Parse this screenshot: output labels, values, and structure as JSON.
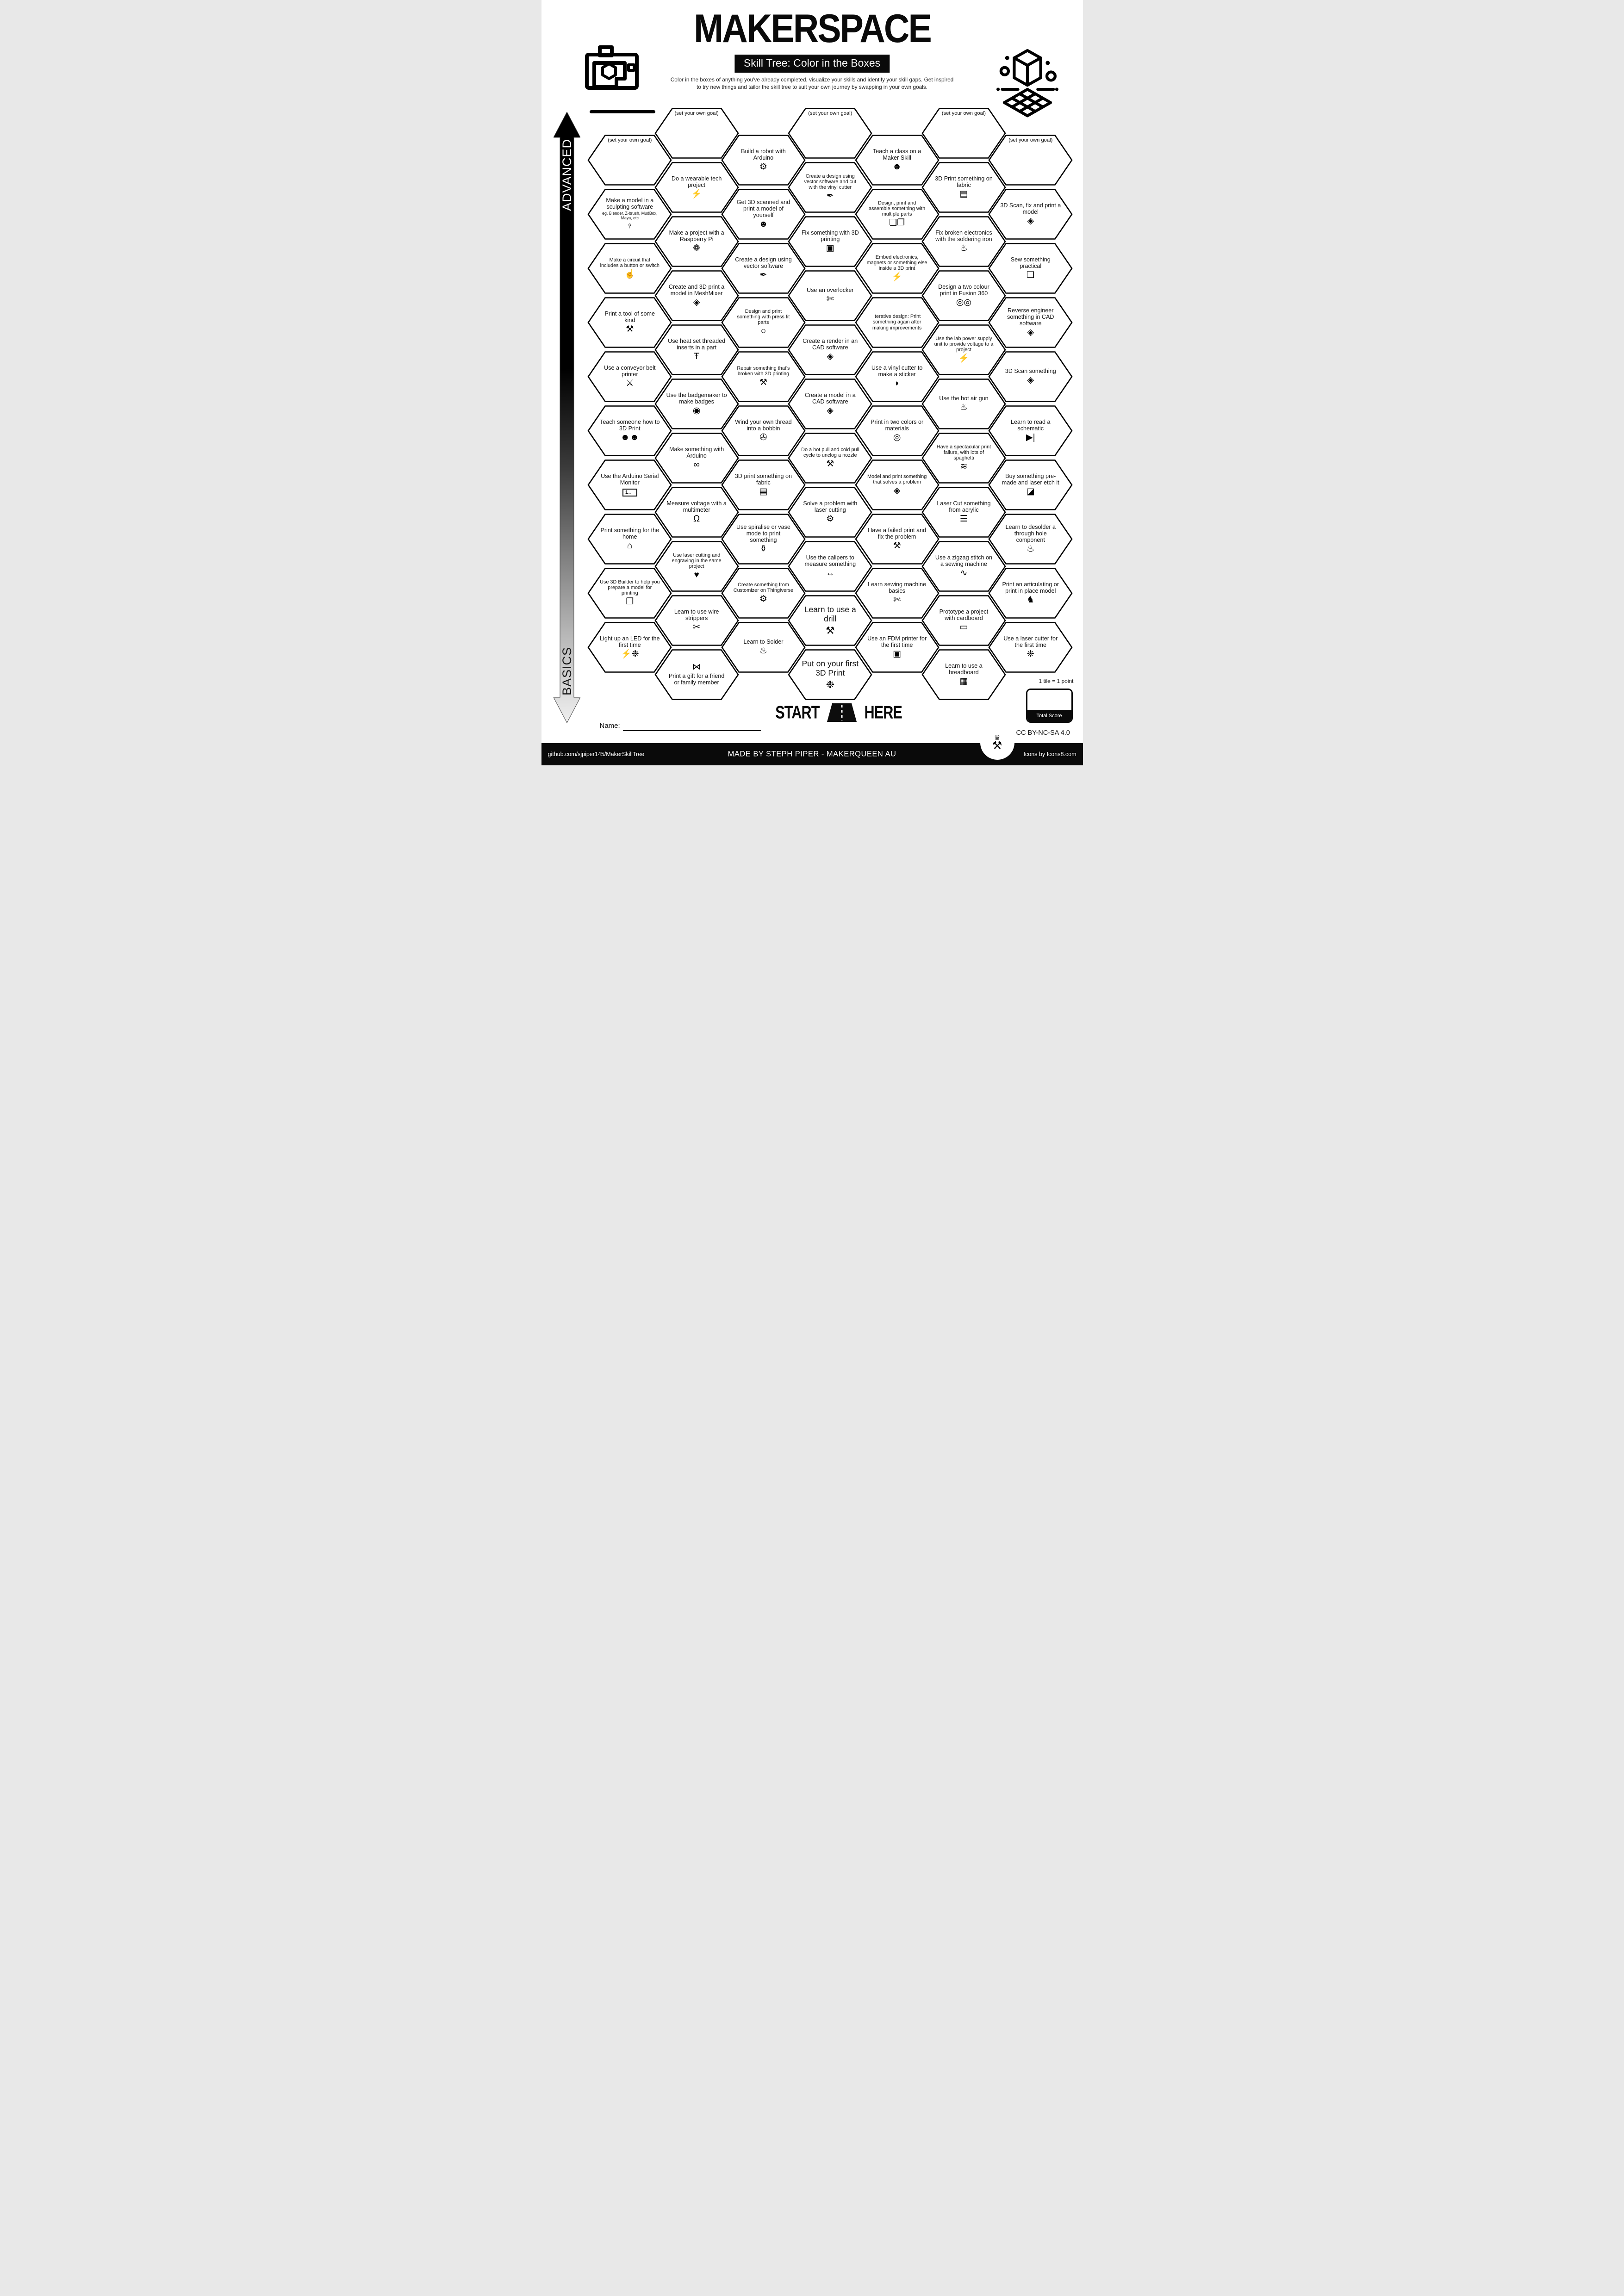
{
  "header": {
    "title": "MAKERSPACE",
    "subtitle": "Skill Tree: Color in the Boxes",
    "description_line1": "Color in the boxes of anything you've already completed, visualize your skills and identify your skill gaps.  Get inspired",
    "description_line2": "to try new things and tailor the skill tree to suit your own journey by swapping in your own goals."
  },
  "axis": {
    "top_label": "ADVANCED",
    "bottom_label": "BASICS"
  },
  "name_label": "Name:",
  "start_here": {
    "start": "START",
    "here": "HERE"
  },
  "score": {
    "tile_note": "1 tile = 1 point",
    "total_label": "Total Score"
  },
  "license": "CC BY-NC-SA 4.0",
  "footer": {
    "left": "github.com/sjpiper145/MakerSkillTree",
    "center": "MADE BY STEPH PIPER  -  MAKERQUEEN AU",
    "right": "Icons by Icons8.com"
  },
  "hexagons": [
    {
      "col": 1,
      "row": 0,
      "label": "(set your own goal)",
      "goal": true,
      "icon": null,
      "glyph": ""
    },
    {
      "col": 1,
      "row": 1,
      "label": "Make a model in a sculpting software",
      "sublabel": "eg. Blender, Z-brush, MudBox, Maya, etc",
      "icon": "statue-icon",
      "glyph": "♀"
    },
    {
      "col": 1,
      "row": 2,
      "label": "Make a circuit that includes a button or switch",
      "icon": "finger-press-icon",
      "glyph": "☝"
    },
    {
      "col": 1,
      "row": 3,
      "label": "Print a tool of some kind",
      "icon": "tools-icon",
      "glyph": "⚒"
    },
    {
      "col": 1,
      "row": 4,
      "label": "Use a conveyor belt printer",
      "icon": "sword-icon",
      "glyph": "⚔"
    },
    {
      "col": 1,
      "row": 5,
      "label": "Teach someone how to 3D Print",
      "icon": "people-laptop-icon",
      "glyph": "☻☻"
    },
    {
      "col": 1,
      "row": 6,
      "label": "Use the Arduino Serial Monitor",
      "icon": "serial-monitor-icon",
      "glyph": "1..",
      "boxed": true
    },
    {
      "col": 1,
      "row": 7,
      "label": "Print something for the home",
      "icon": "home-icon",
      "glyph": "⌂"
    },
    {
      "col": 1,
      "row": 8,
      "label": "Use 3D Builder to help you prepare a model for printing",
      "icon": "3d-builder-icon",
      "glyph": "❒"
    },
    {
      "col": 1,
      "row": 9,
      "label": "Light up an LED for the first time",
      "icon": "led-party-icon",
      "glyph": "⚡❉"
    },
    {
      "col": 2,
      "row": 0,
      "label": "(set your own goal)",
      "goal": true,
      "icon": null,
      "glyph": ""
    },
    {
      "col": 2,
      "row": 1,
      "label": "Do a wearable tech project",
      "icon": "led-bolt-icon",
      "glyph": "⚡"
    },
    {
      "col": 2,
      "row": 2,
      "label": "Make a project with a Raspberry Pi",
      "icon": "raspberry-pi-icon",
      "glyph": "❁"
    },
    {
      "col": 2,
      "row": 3,
      "label": "Create and 3D print a model in MeshMixer",
      "icon": "cube-icon",
      "glyph": "◈"
    },
    {
      "col": 2,
      "row": 4,
      "label": "Use heat set threaded inserts in a part",
      "icon": "screw-icon",
      "glyph": "Ŧ"
    },
    {
      "col": 2,
      "row": 5,
      "label": "Use the badgemaker to make badges",
      "icon": "badge-icon",
      "glyph": "◉"
    },
    {
      "col": 2,
      "row": 6,
      "label": "Make something with Arduino",
      "icon": "arduino-icon",
      "glyph": "∞"
    },
    {
      "col": 2,
      "row": 7,
      "label": "Measure voltage with a multimeter",
      "icon": "multimeter-icon",
      "glyph": "Ω"
    },
    {
      "col": 2,
      "row": 8,
      "label": "Use laser cutting and engraving in the same project",
      "icon": "laser-heart-icon",
      "glyph": "♥"
    },
    {
      "col": 2,
      "row": 9,
      "label": "Learn to use wire strippers",
      "icon": "wire-strippers-icon",
      "glyph": "✂"
    },
    {
      "col": 2,
      "row": 10,
      "label": "Print a gift for a friend or family member",
      "icon": "gift-bow-icon",
      "glyph": "⋈",
      "icon_position": "top"
    },
    {
      "col": 3,
      "row": 0,
      "label": "Build a robot with Arduino",
      "icon": "robot-icon",
      "glyph": "⚙"
    },
    {
      "col": 3,
      "row": 1,
      "label": "Get 3D scanned and print a model of yourself",
      "icon": "scanned-head-icon",
      "glyph": "☻"
    },
    {
      "col": 3,
      "row": 2,
      "label": "Create a design using vector software",
      "icon": "pen-tool-icon",
      "glyph": "✒"
    },
    {
      "col": 3,
      "row": 3,
      "label": "Design and print something with press fit parts",
      "icon": "cylinder-icon",
      "glyph": "○"
    },
    {
      "col": 3,
      "row": 4,
      "label": "Repair something that's broken with 3D printing",
      "icon": "repair-tools-icon",
      "glyph": "⚒"
    },
    {
      "col": 3,
      "row": 5,
      "label": "Wind your own thread into a bobbin",
      "icon": "bobbin-icon",
      "glyph": "✇"
    },
    {
      "col": 3,
      "row": 6,
      "label": "3D print something on fabric",
      "icon": "fabric-icon",
      "glyph": "▤"
    },
    {
      "col": 3,
      "row": 7,
      "label": "Use spiralise or vase mode to print something",
      "icon": "vase-icon",
      "glyph": "⚱"
    },
    {
      "col": 3,
      "row": 8,
      "label": "Create something from Customizer on Thingiverse",
      "icon": "customizer-gear-icon",
      "glyph": "⚙"
    },
    {
      "col": 3,
      "row": 9,
      "label": "Learn to Solder",
      "icon": "soldering-iron-icon",
      "glyph": "♨"
    },
    {
      "col": 4,
      "row": 0,
      "label": "(set your own goal)",
      "goal": true,
      "icon": null,
      "glyph": ""
    },
    {
      "col": 4,
      "row": 1,
      "label": "Create a design using vector software and cut with the vinyl cutter",
      "icon": "pen-tool-icon",
      "glyph": "✒"
    },
    {
      "col": 4,
      "row": 2,
      "label": "Fix something with 3D printing",
      "icon": "3d-printer-icon",
      "glyph": "▣"
    },
    {
      "col": 4,
      "row": 3,
      "label": "Use an overlocker",
      "icon": "overlocker-icon",
      "glyph": "✄"
    },
    {
      "col": 4,
      "row": 4,
      "label": "Create a render in an CAD software",
      "icon": "cube-icon",
      "glyph": "◈"
    },
    {
      "col": 4,
      "row": 5,
      "label": "Create a model in a CAD software",
      "icon": "cube-icon",
      "glyph": "◈"
    },
    {
      "col": 4,
      "row": 6,
      "label": "Do a hot pull and cold pull cycle to unclog a nozzle",
      "icon": "tools-icon",
      "glyph": "⚒"
    },
    {
      "col": 4,
      "row": 7,
      "label": "Solve a problem with laser cutting",
      "icon": "laser-gear-icon",
      "glyph": "⚙"
    },
    {
      "col": 4,
      "row": 8,
      "label": "Use the calipers to measure something",
      "icon": "calipers-icon",
      "glyph": "↔"
    },
    {
      "col": 4,
      "row": 9,
      "label": "Learn to use a drill",
      "icon": "drill-icon",
      "glyph": "⚒",
      "emphasis": true
    },
    {
      "col": 4,
      "row": 10,
      "label": "Put on your first 3D Print",
      "icon": "party-popper-icon",
      "glyph": "❉",
      "emphasis": true
    },
    {
      "col": 5,
      "row": 0,
      "label": "Teach a class on a Maker Skill",
      "icon": "teacher-icon",
      "glyph": "☻"
    },
    {
      "col": 5,
      "row": 1,
      "label": "Design, print and assemble something with multiple parts",
      "icon": "multi-cubes-icon",
      "glyph": "❏❐"
    },
    {
      "col": 5,
      "row": 2,
      "label": "Embed electronics, magnets or something else inside a 3D print",
      "icon": "led-icon",
      "glyph": "⚡"
    },
    {
      "col": 5,
      "row": 3,
      "label": "Iterative design: Print something again after making improvements",
      "icon": null,
      "glyph": ""
    },
    {
      "col": 5,
      "row": 4,
      "label": "Use a vinyl cutter to make a sticker",
      "icon": "sticker-peel-icon",
      "glyph": "◗"
    },
    {
      "col": 5,
      "row": 5,
      "label": "Print in two colors or materials",
      "icon": "filament-spool-icon",
      "glyph": "◎"
    },
    {
      "col": 5,
      "row": 6,
      "label": "Model and print something that solves a problem",
      "icon": "cube-icon",
      "glyph": "◈"
    },
    {
      "col": 5,
      "row": 7,
      "label": "Have a failed print and fix the problem",
      "icon": "fix-tools-icon",
      "glyph": "⚒"
    },
    {
      "col": 5,
      "row": 8,
      "label": "Learn sewing machine basics",
      "icon": "sewing-machine-icon",
      "glyph": "✄"
    },
    {
      "col": 5,
      "row": 9,
      "label": "Use an FDM printer for the first time",
      "icon": "3d-printer-icon",
      "glyph": "▣"
    },
    {
      "col": 6,
      "row": 0,
      "label": "(set your own goal)",
      "goal": true,
      "icon": null,
      "glyph": ""
    },
    {
      "col": 6,
      "row": 1,
      "label": "3D Print something on fabric",
      "icon": "fabric-icon",
      "glyph": "▤"
    },
    {
      "col": 6,
      "row": 2,
      "label": "Fix broken electronics with the soldering iron",
      "icon": "soldering-iron-icon",
      "glyph": "♨"
    },
    {
      "col": 6,
      "row": 3,
      "label": "Design a two colour print in Fusion 360",
      "icon": "filament-spools-icon",
      "glyph": "◎◎"
    },
    {
      "col": 6,
      "row": 4,
      "label": "Use the lab power supply unit to provide voltage to a project",
      "icon": "power-bolt-icon",
      "glyph": "⚡"
    },
    {
      "col": 6,
      "row": 5,
      "label": "Use the hot air gun",
      "icon": "hot-air-gun-icon",
      "glyph": "♨"
    },
    {
      "col": 6,
      "row": 6,
      "label": "Have a spectacular print failure, with lots of spaghetti",
      "icon": "spaghetti-bowl-icon",
      "glyph": "≋"
    },
    {
      "col": 6,
      "row": 7,
      "label": "Laser Cut something from acrylic",
      "icon": "acrylic-layers-icon",
      "glyph": "☰"
    },
    {
      "col": 6,
      "row": 8,
      "label": "Use a zigzag stitch on a sewing machine",
      "icon": "zigzag-stitch-icon",
      "glyph": "∿"
    },
    {
      "col": 6,
      "row": 9,
      "label": "Prototype a project with cardboard",
      "icon": "cardboard-icon",
      "glyph": "▭"
    },
    {
      "col": 6,
      "row": 10,
      "label": "Learn to use a breadboard",
      "icon": "breadboard-icon",
      "glyph": "▦"
    },
    {
      "col": 7,
      "row": 0,
      "label": "(set your own goal)",
      "goal": true,
      "icon": null,
      "glyph": ""
    },
    {
      "col": 7,
      "row": 1,
      "label": "3D Scan, fix and print a model",
      "icon": "scan-cube-cursor-icon",
      "glyph": "◈"
    },
    {
      "col": 7,
      "row": 2,
      "label": "Sew something practical",
      "icon": "bag-icon",
      "glyph": "❑"
    },
    {
      "col": 7,
      "row": 3,
      "label": "Reverse engineer something in CAD software",
      "icon": "cube-icon",
      "glyph": "◈"
    },
    {
      "col": 7,
      "row": 4,
      "label": "3D Scan something",
      "icon": "scan-cube-cursor-icon",
      "glyph": "◈"
    },
    {
      "col": 7,
      "row": 5,
      "label": "Learn to read a schematic",
      "icon": "diode-icon",
      "glyph": "▶|"
    },
    {
      "col": 7,
      "row": 6,
      "label": "Buy something pre-made and laser etch it",
      "icon": "laser-etch-icon",
      "glyph": "◪"
    },
    {
      "col": 7,
      "row": 7,
      "label": "Learn to desolder a through hole component",
      "icon": "desolder-icon",
      "glyph": "♨"
    },
    {
      "col": 7,
      "row": 8,
      "label": "Print an articulating or print in place model",
      "icon": "dragon-icon",
      "glyph": "♞"
    },
    {
      "col": 7,
      "row": 9,
      "label": "Use a laser cutter for the first time",
      "icon": "party-popper-icon",
      "glyph": "❉"
    }
  ]
}
